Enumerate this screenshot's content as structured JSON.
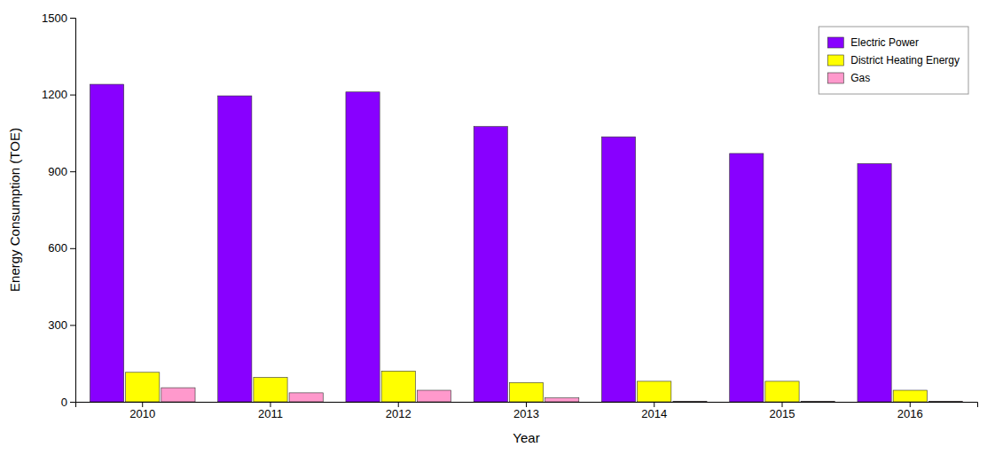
{
  "chart_data": {
    "type": "bar",
    "categories": [
      "2010",
      "2011",
      "2012",
      "2013",
      "2014",
      "2015",
      "2016"
    ],
    "series": [
      {
        "name": "Electric Power",
        "color": "#8800FF",
        "values": [
          1240,
          1195,
          1210,
          1075,
          1035,
          970,
          930
        ]
      },
      {
        "name": "District Heating Energy",
        "color": "#FFFF00",
        "values": [
          115,
          95,
          120,
          75,
          80,
          80,
          45
        ]
      },
      {
        "name": "Gas",
        "color": "#FF99CC",
        "values": [
          55,
          35,
          45,
          15,
          2,
          2,
          2
        ]
      }
    ],
    "xlabel": "Year",
    "ylabel": "Energy Consumption (TOE)",
    "ylim": [
      0,
      1500
    ],
    "yticks": [
      0,
      300,
      600,
      900,
      1200,
      1500
    ],
    "legend": "upper right",
    "grid": false
  }
}
